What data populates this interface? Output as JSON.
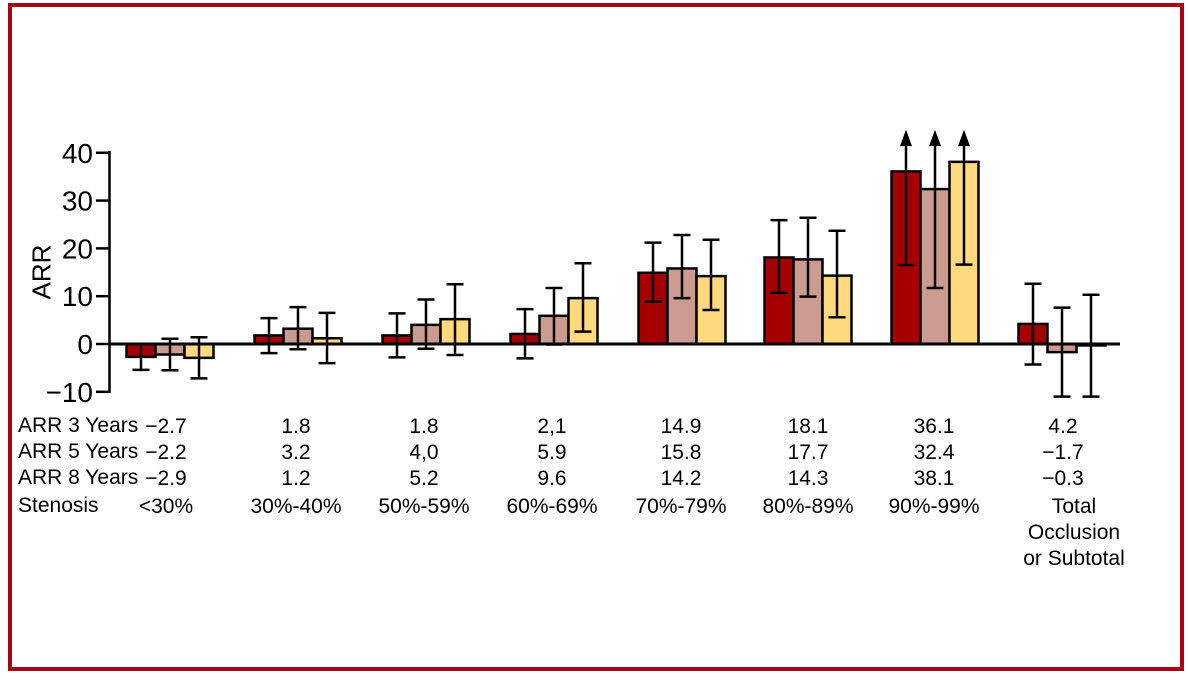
{
  "figure": {
    "border_color": "#A80014",
    "background": "#FFFFFF"
  },
  "chart_data": {
    "type": "bar",
    "title": "",
    "xlabel": "Stenosis",
    "ylabel": "ARR",
    "ylim": [
      -10,
      45
    ],
    "yticks": [
      40,
      30,
      20,
      10,
      0,
      -10
    ],
    "ytick_labels": [
      "40",
      "30",
      "20",
      "10",
      "0",
      "−10"
    ],
    "grid": false,
    "legend_position": "none",
    "categories": [
      "<30%",
      "30%-40%",
      "50%-59%",
      "60%-69%",
      "70%-79%",
      "80%-89%",
      "90%-99%",
      "Total Occlusion or Subtotal"
    ],
    "series": [
      {
        "name": "ARR 3 Years",
        "color": "#A40000",
        "values": [
          -2.7,
          1.8,
          1.8,
          2.1,
          14.9,
          18.1,
          36.1,
          4.2
        ],
        "ci_low": [
          -5.4,
          -1.9,
          -2.8,
          -3.0,
          8.9,
          10.7,
          16.5,
          -4.3
        ],
        "ci_high": [
          0.0,
          5.4,
          6.4,
          7.3,
          21.2,
          25.9,
          44.4,
          12.6
        ],
        "arrow_high": [
          false,
          false,
          false,
          false,
          false,
          false,
          true,
          false
        ]
      },
      {
        "name": "ARR 5 Years",
        "color": "#CB9B90",
        "values": [
          -2.2,
          3.2,
          4.0,
          5.9,
          15.8,
          17.7,
          32.4,
          -1.7
        ],
        "ci_low": [
          -5.5,
          -1.1,
          -1.0,
          -0.1,
          9.6,
          9.9,
          11.7,
          -11.0
        ],
        "ci_high": [
          1.1,
          7.7,
          9.3,
          11.7,
          22.8,
          26.4,
          44.4,
          7.6
        ],
        "arrow_high": [
          false,
          false,
          false,
          false,
          false,
          false,
          true,
          false
        ]
      },
      {
        "name": "ARR 8 Years",
        "color": "#FED97E",
        "values": [
          -2.9,
          1.2,
          5.2,
          9.6,
          14.2,
          14.3,
          38.1,
          -0.3
        ],
        "ci_low": [
          -7.2,
          -4.0,
          -2.3,
          2.6,
          7.1,
          5.6,
          16.6,
          -11.0
        ],
        "ci_high": [
          1.4,
          6.5,
          12.5,
          16.9,
          21.8,
          23.7,
          44.4,
          10.3
        ],
        "arrow_high": [
          false,
          false,
          false,
          false,
          false,
          false,
          true,
          false
        ]
      }
    ],
    "annotation": "Upward arrows on 90%-99% bars indicate upper confidence limits extending beyond the axis"
  },
  "table": {
    "rows": [
      {
        "label": "ARR 3 Years",
        "values": [
          "−2.7",
          "1.8",
          "1.8",
          "2,1",
          "14.9",
          "18.1",
          "36.1",
          "4.2"
        ]
      },
      {
        "label": "ARR 5 Years",
        "values": [
          "−2.2",
          "3.2",
          "4,0",
          "5.9",
          "15.8",
          "17.7",
          "32.4",
          "−1.7"
        ]
      },
      {
        "label": "ARR 8 Years",
        "values": [
          "−2.9",
          "1.2",
          "5.2",
          "9.6",
          "14.2",
          "14.3",
          "38.1",
          "−0.3"
        ]
      },
      {
        "label": "Stenosis",
        "values": [
          "<30%",
          "30%-40%",
          "50%-59%",
          "60%-69%",
          "70%-79%",
          "80%-89%",
          "90%-99%",
          "Total Occlusion\nor Subtotal"
        ]
      }
    ]
  }
}
